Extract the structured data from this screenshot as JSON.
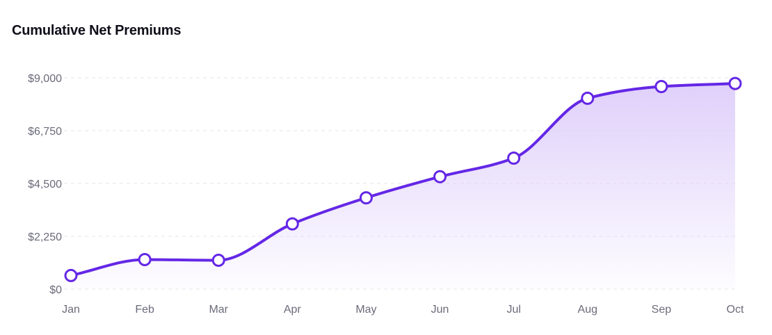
{
  "chart_data": {
    "type": "area",
    "title": "Cumulative Net Premiums",
    "xlabel": "",
    "ylabel": "",
    "categories": [
      "Jan",
      "Feb",
      "Mar",
      "Apr",
      "May",
      "Jun",
      "Jul",
      "Aug",
      "Sep",
      "Oct"
    ],
    "values": [
      580,
      1260,
      1230,
      2780,
      3890,
      4790,
      5580,
      8130,
      8630,
      8760
    ],
    "yticks": [
      "$0",
      "$2,250",
      "$4,500",
      "$6,750",
      "$9,000"
    ],
    "ylim": [
      0,
      9000
    ],
    "grid": true,
    "legend": "none",
    "colors": {
      "line": "#6427e6",
      "fill_top": "#dccbfa",
      "marker_fill": "#ffffff",
      "grid": "#e6e6ea",
      "tick": "#6b6b7b"
    }
  }
}
